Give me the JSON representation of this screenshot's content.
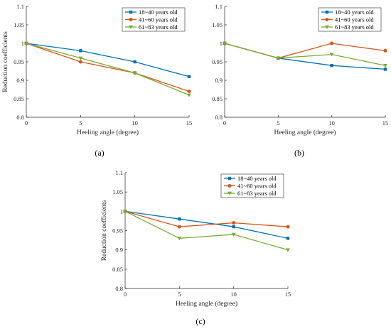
{
  "figure": {
    "panels": [
      {
        "label": "(a)"
      },
      {
        "label": "(b)"
      },
      {
        "label": "(c)"
      }
    ]
  },
  "chart_data": [
    {
      "type": "line",
      "panel_label": "(a)",
      "xlabel": "Heeling angle (degree)",
      "ylabel": "Reduction coefficients",
      "xlim": [
        0,
        15
      ],
      "ylim": [
        0.8,
        1.1
      ],
      "x": [
        0,
        5,
        10,
        15
      ],
      "x_ticks": [
        "0",
        "5",
        "10",
        "15"
      ],
      "y_ticks": [
        "0.8",
        "0.85",
        "0.9",
        "0.95",
        "1",
        "1.05",
        "1.1"
      ],
      "legend_position": "top-right",
      "grid": false,
      "series": [
        {
          "name": "18~40 years old",
          "values": [
            1.0,
            0.98,
            0.95,
            0.91
          ],
          "color": "#0072BD",
          "marker": "square"
        },
        {
          "name": "41~60 years old",
          "values": [
            1.0,
            0.95,
            0.92,
            0.87
          ],
          "color": "#D95319",
          "marker": "circle"
        },
        {
          "name": "61~83 years old",
          "values": [
            1.0,
            0.96,
            0.92,
            0.86
          ],
          "color": "#77AC30",
          "marker": "triangle-down"
        }
      ]
    },
    {
      "type": "line",
      "panel_label": "(b)",
      "xlabel": "Heeling angle (degree)",
      "ylabel": "",
      "xlim": [
        0,
        15
      ],
      "ylim": [
        0.8,
        1.1
      ],
      "x": [
        0,
        5,
        10,
        15
      ],
      "x_ticks": [
        "0",
        "5",
        "10",
        "15"
      ],
      "y_ticks": [
        "0.8",
        "0.85",
        "0.9",
        "0.95",
        "1",
        "1.05",
        "1.1"
      ],
      "legend_position": "top-right",
      "grid": false,
      "series": [
        {
          "name": "18~40 years old",
          "values": [
            1.0,
            0.96,
            0.94,
            0.93
          ],
          "color": "#0072BD",
          "marker": "square"
        },
        {
          "name": "41~60 years old",
          "values": [
            1.0,
            0.96,
            1.0,
            0.98
          ],
          "color": "#D95319",
          "marker": "circle"
        },
        {
          "name": "61~83 years old",
          "values": [
            1.0,
            0.96,
            0.97,
            0.94
          ],
          "color": "#77AC30",
          "marker": "triangle-down"
        }
      ]
    },
    {
      "type": "line",
      "panel_label": "(c)",
      "xlabel": "Heeling angle (degree)",
      "ylabel": "Reduction coefficients",
      "xlim": [
        0,
        15
      ],
      "ylim": [
        0.8,
        1.1
      ],
      "x": [
        0,
        5,
        10,
        15
      ],
      "x_ticks": [
        "0",
        "5",
        "10",
        "15"
      ],
      "y_ticks": [
        "0.8",
        "0.85",
        "0.9",
        "0.95",
        "1",
        "1.05",
        "1.1"
      ],
      "legend_position": "top-right",
      "grid": false,
      "series": [
        {
          "name": "18~40 years old",
          "values": [
            1.0,
            0.98,
            0.96,
            0.93
          ],
          "color": "#0072BD",
          "marker": "square"
        },
        {
          "name": "41~60 years old",
          "values": [
            1.0,
            0.96,
            0.97,
            0.96
          ],
          "color": "#D95319",
          "marker": "circle"
        },
        {
          "name": "61~83 years old",
          "values": [
            1.0,
            0.93,
            0.94,
            0.9
          ],
          "color": "#77AC30",
          "marker": "triangle-down"
        }
      ]
    }
  ]
}
